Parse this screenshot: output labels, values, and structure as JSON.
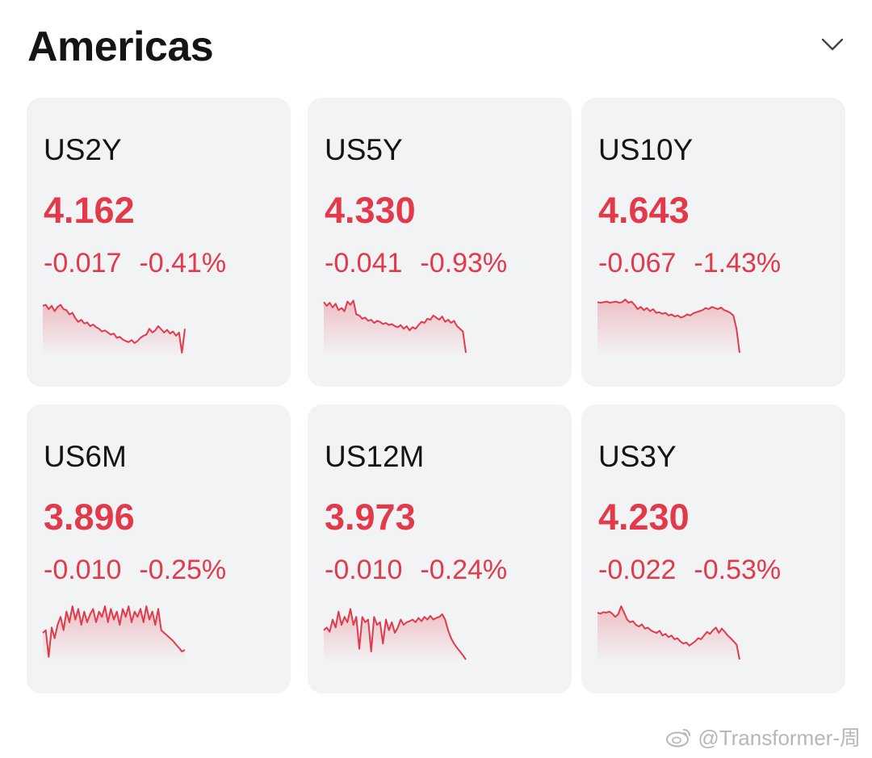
{
  "header": {
    "title": "Americas",
    "collapse_icon": "chevron-down-icon"
  },
  "theme": {
    "down_color": "#e23a4a",
    "card_bg": "#f2f3f5"
  },
  "cards": [
    {
      "symbol": "US2Y",
      "price": "4.162",
      "change": "-0.017",
      "change_pct": "-0.41%",
      "spark": [
        0.12,
        0.1,
        0.18,
        0.12,
        0.22,
        0.14,
        0.1,
        0.18,
        0.2,
        0.28,
        0.25,
        0.35,
        0.42,
        0.38,
        0.45,
        0.43,
        0.5,
        0.47,
        0.52,
        0.55,
        0.6,
        0.58,
        0.62,
        0.66,
        0.64,
        0.72,
        0.7,
        0.75,
        0.78,
        0.8,
        0.76,
        0.82,
        0.78,
        0.72,
        0.68,
        0.66,
        0.55,
        0.62,
        0.58,
        0.5,
        0.56,
        0.62,
        0.57,
        0.64,
        0.6,
        0.68,
        0.62,
        1.0,
        0.55
      ]
    },
    {
      "symbol": "US5Y",
      "price": "4.330",
      "change": "-0.041",
      "change_pct": "-0.93%",
      "spark": [
        0.05,
        0.12,
        0.06,
        0.15,
        0.08,
        0.2,
        0.16,
        0.22,
        0.04,
        0.1,
        0.02,
        0.28,
        0.3,
        0.36,
        0.34,
        0.4,
        0.38,
        0.44,
        0.4,
        0.42,
        0.46,
        0.44,
        0.48,
        0.46,
        0.5,
        0.52,
        0.48,
        0.55,
        0.5,
        0.58,
        0.52,
        0.55,
        0.48,
        0.42,
        0.44,
        0.36,
        0.38,
        0.3,
        0.34,
        0.38,
        0.32,
        0.42,
        0.38,
        0.44,
        0.4,
        0.5,
        0.55,
        0.6,
        1.0
      ]
    },
    {
      "symbol": "US10Y",
      "price": "4.643",
      "change": "-0.067",
      "change_pct": "-1.43%",
      "spark": [
        0.05,
        0.06,
        0.05,
        0.04,
        0.06,
        0.05,
        0.04,
        0.06,
        0.05,
        0.0,
        0.06,
        0.04,
        0.1,
        0.18,
        0.14,
        0.2,
        0.16,
        0.22,
        0.18,
        0.25,
        0.24,
        0.27,
        0.25,
        0.3,
        0.28,
        0.32,
        0.3,
        0.34,
        0.32,
        0.28,
        0.3,
        0.26,
        0.24,
        0.22,
        0.2,
        0.16,
        0.18,
        0.14,
        0.16,
        0.18,
        0.15,
        0.2,
        0.22,
        0.25,
        0.3,
        0.55,
        1.0
      ]
    },
    {
      "symbol": "US6M",
      "price": "3.896",
      "change": "-0.010",
      "change_pct": "-0.25%",
      "spark": [
        0.5,
        0.45,
        0.95,
        0.4,
        0.6,
        0.35,
        0.2,
        0.45,
        0.1,
        0.3,
        0.0,
        0.25,
        0.05,
        0.35,
        0.1,
        0.3,
        0.15,
        0.05,
        0.3,
        0.1,
        0.2,
        0.0,
        0.3,
        0.05,
        0.25,
        0.1,
        0.35,
        0.05,
        0.2,
        0.0,
        0.3,
        0.1,
        0.2,
        0.05,
        0.3,
        0.0,
        0.25,
        0.1,
        0.35,
        0.05,
        0.45,
        0.5,
        0.55,
        0.6,
        0.65,
        0.72,
        0.78,
        0.85,
        0.82
      ]
    },
    {
      "symbol": "US12M",
      "price": "3.973",
      "change": "-0.010",
      "change_pct": "-0.24%",
      "spark": [
        0.45,
        0.4,
        0.48,
        0.25,
        0.4,
        0.1,
        0.35,
        0.2,
        0.3,
        0.05,
        0.35,
        0.2,
        0.8,
        0.2,
        0.3,
        0.25,
        0.85,
        0.2,
        0.35,
        0.3,
        0.7,
        0.25,
        0.45,
        0.3,
        0.5,
        0.4,
        0.25,
        0.35,
        0.3,
        0.28,
        0.25,
        0.3,
        0.22,
        0.28,
        0.2,
        0.25,
        0.18,
        0.25,
        0.22,
        0.2,
        0.15,
        0.25,
        0.45,
        0.6,
        0.7,
        0.78,
        0.85,
        0.92,
        1.0
      ]
    },
    {
      "symbol": "US3Y",
      "price": "4.230",
      "change": "-0.022",
      "change_pct": "-0.53%",
      "spark": [
        0.12,
        0.14,
        0.11,
        0.12,
        0.1,
        0.14,
        0.2,
        0.15,
        0.0,
        0.12,
        0.25,
        0.3,
        0.28,
        0.35,
        0.38,
        0.34,
        0.42,
        0.4,
        0.45,
        0.48,
        0.5,
        0.46,
        0.55,
        0.52,
        0.58,
        0.55,
        0.62,
        0.6,
        0.66,
        0.7,
        0.68,
        0.74,
        0.7,
        0.66,
        0.6,
        0.62,
        0.55,
        0.48,
        0.52,
        0.45,
        0.4,
        0.5,
        0.42,
        0.48,
        0.55,
        0.6,
        0.66,
        0.72,
        1.0
      ]
    }
  ],
  "watermark": {
    "text": "@Transformer-周",
    "icon": "weibo-icon"
  }
}
